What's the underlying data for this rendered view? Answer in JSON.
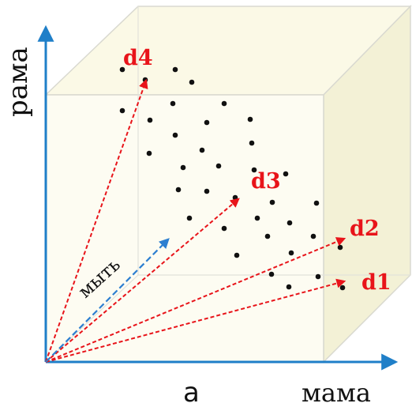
{
  "axes": {
    "y_label": "рама",
    "x_label": "мама",
    "z_label": "а"
  },
  "query": {
    "label": "мыть"
  },
  "documents": [
    {
      "label": "d1"
    },
    {
      "label": "d2"
    },
    {
      "label": "d3"
    },
    {
      "label": "d4"
    }
  ],
  "colors": {
    "axis": "#1f7fc8",
    "document_vector": "#e8141a",
    "query_vector": "#2d7fd0",
    "document_label": "#e8141a",
    "cube_fill": "#fbf9e6",
    "cube_edge": "#d9d9d0",
    "point": "#111111"
  },
  "points_count": 36
}
